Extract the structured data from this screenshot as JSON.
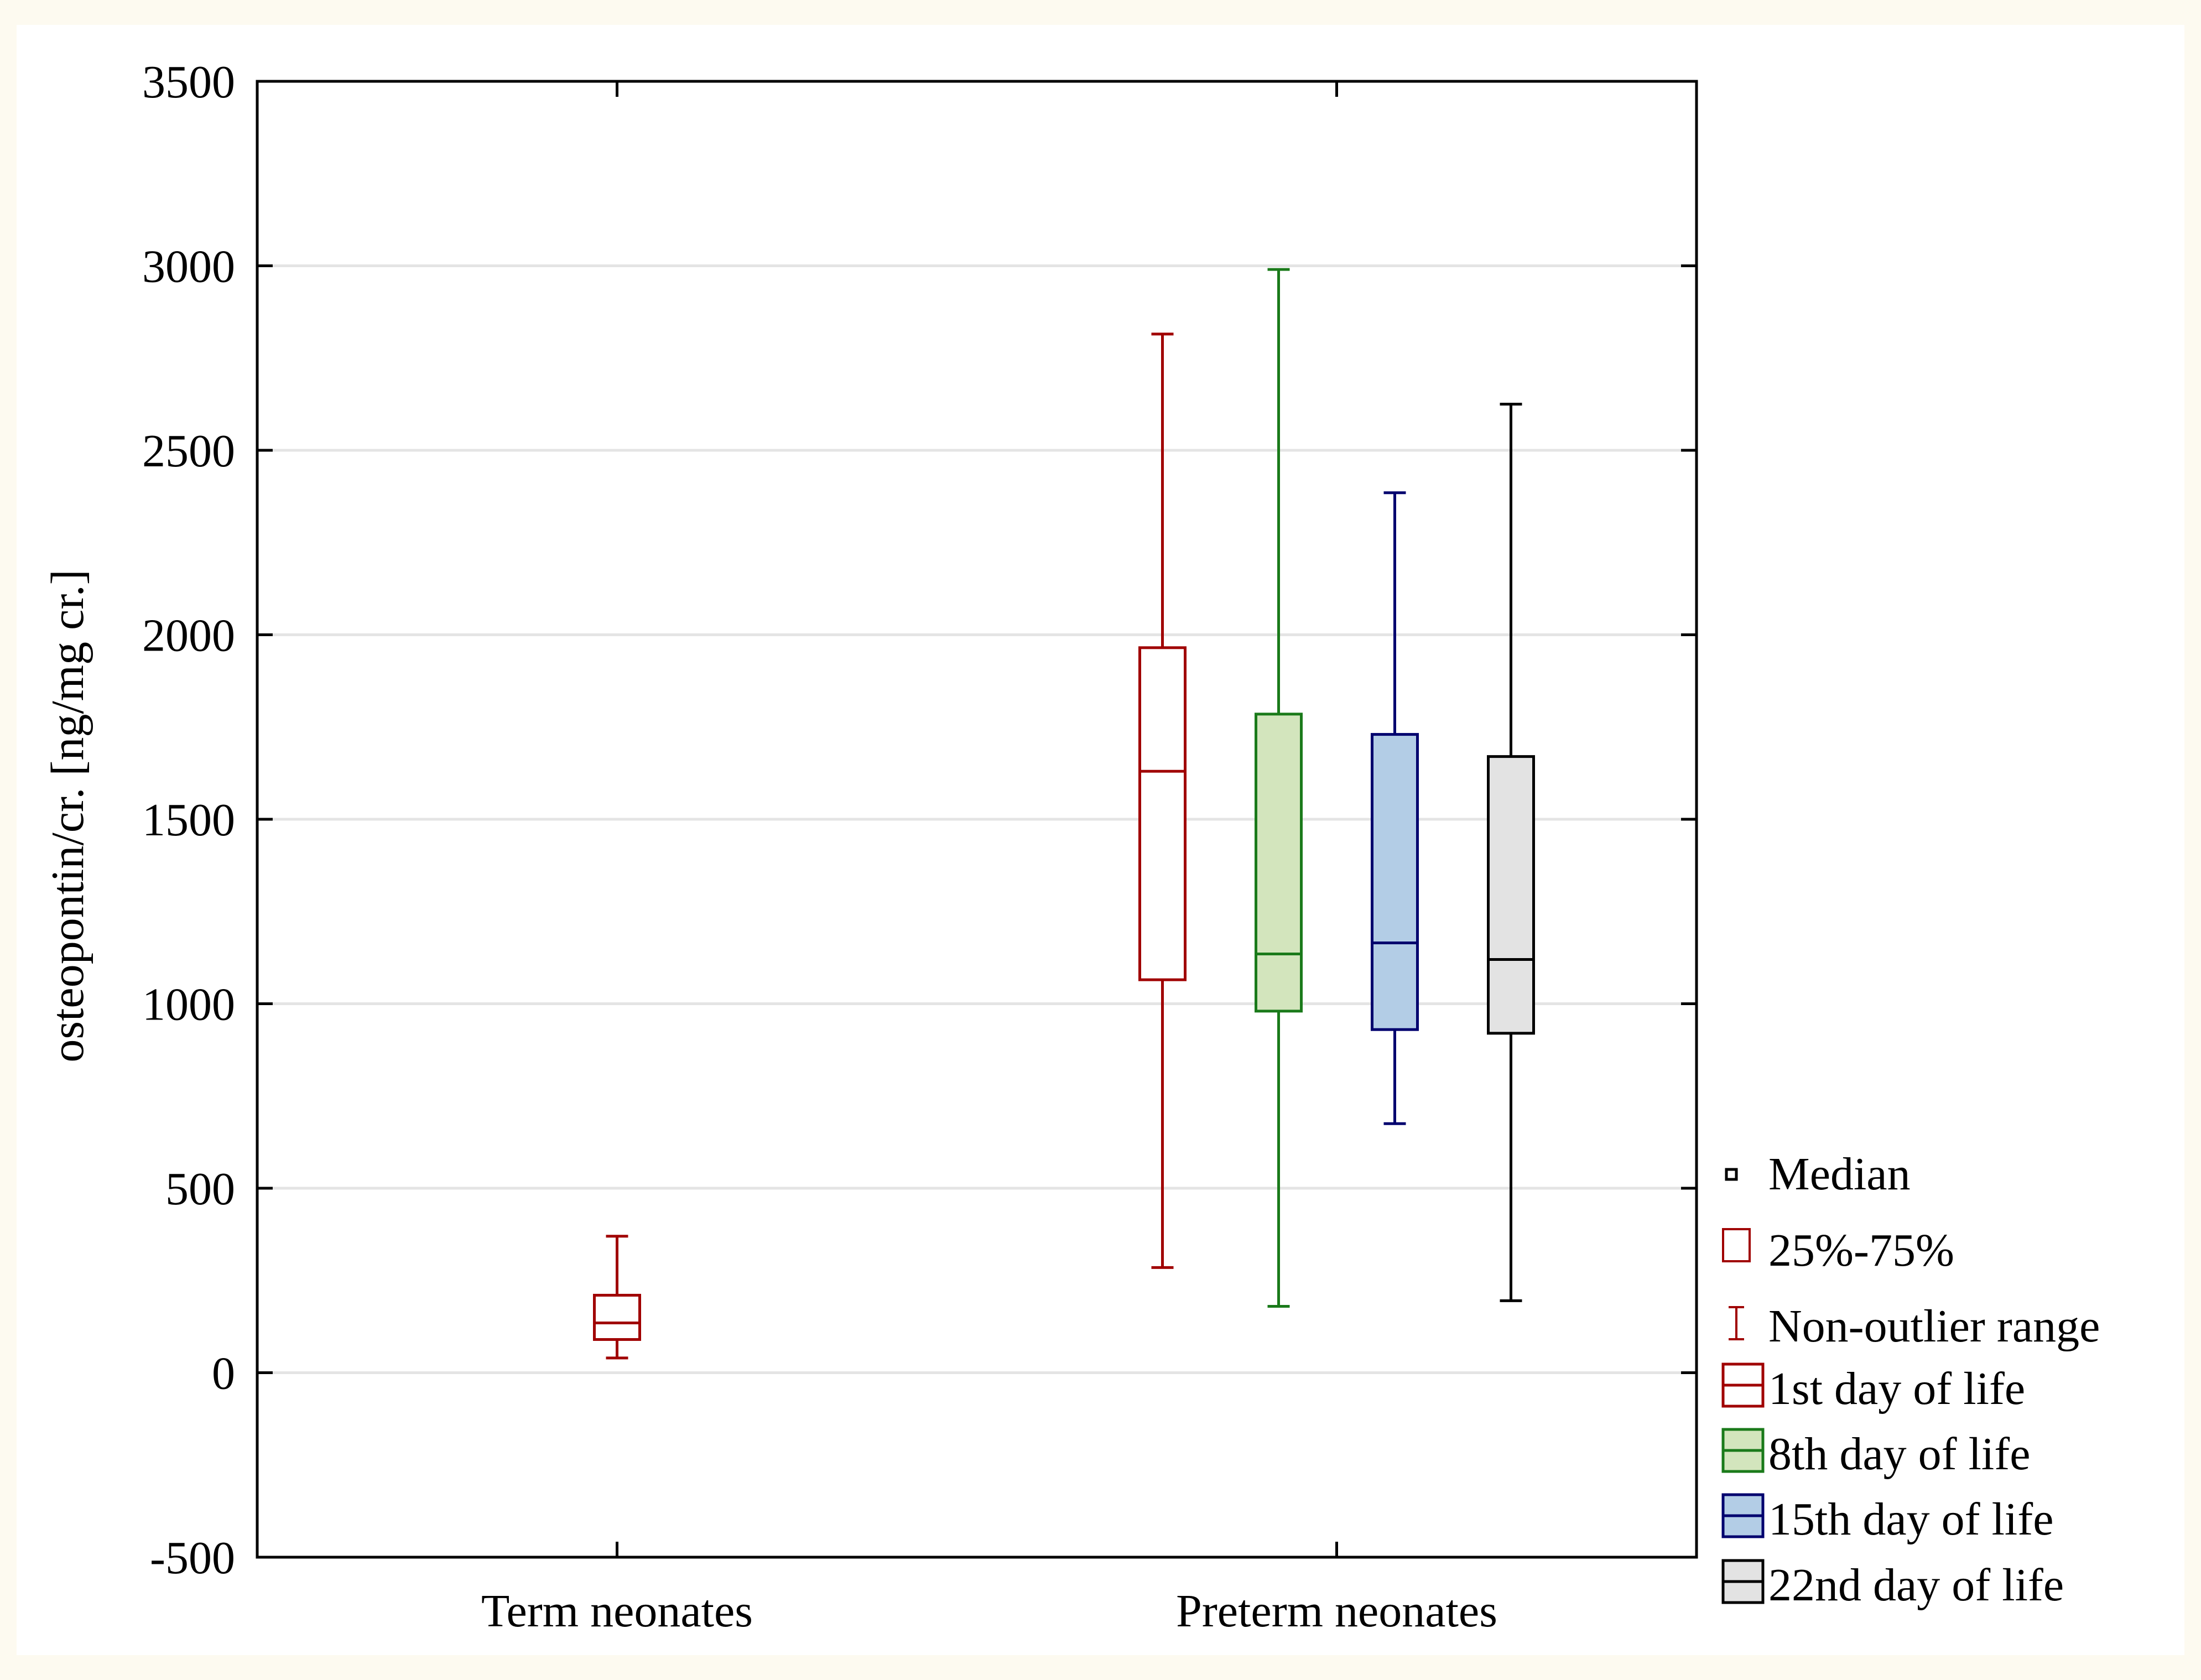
{
  "chart_data": {
    "type": "box",
    "title": "",
    "xlabel": "",
    "ylabel": "osteopontin/cr. [ng/mg cr.]",
    "ylim": [
      -500,
      3500
    ],
    "yticks": [
      -500,
      0,
      500,
      1000,
      1500,
      2000,
      2500,
      3000,
      3500
    ],
    "grid": "horizontal",
    "categories": [
      "Term neonates",
      "Preterm neonates"
    ],
    "series": [
      {
        "name": "1st day of life",
        "color": "#a00000",
        "fill": "#ffffff",
        "boxes": [
          {
            "category": "Term neonates",
            "min": 40,
            "q1": 90,
            "median": 135,
            "q3": 210,
            "max": 370
          },
          {
            "category": "Preterm neonates",
            "min": 285,
            "q1": 1065,
            "median": 1630,
            "q3": 1965,
            "max": 2815
          }
        ]
      },
      {
        "name": "8th day of life",
        "color": "#1a7a1a",
        "fill": "#d3e5bd",
        "boxes": [
          {
            "category": "Preterm neonates",
            "min": 180,
            "q1": 980,
            "median": 1135,
            "q3": 1785,
            "max": 2990
          }
        ]
      },
      {
        "name": "15th day of life",
        "color": "#00006e",
        "fill": "#b3cde6",
        "boxes": [
          {
            "category": "Preterm neonates",
            "min": 675,
            "q1": 930,
            "median": 1165,
            "q3": 1730,
            "max": 2385
          }
        ]
      },
      {
        "name": "22nd day of life",
        "color": "#000000",
        "fill": "#e3e3e3",
        "boxes": [
          {
            "category": "Preterm neonates",
            "min": 195,
            "q1": 920,
            "median": 1120,
            "q3": 1670,
            "max": 2625
          }
        ]
      }
    ],
    "legend": {
      "position": "right",
      "stat_items": [
        "Median",
        "25%-75%",
        "Non-outlier range"
      ]
    }
  }
}
